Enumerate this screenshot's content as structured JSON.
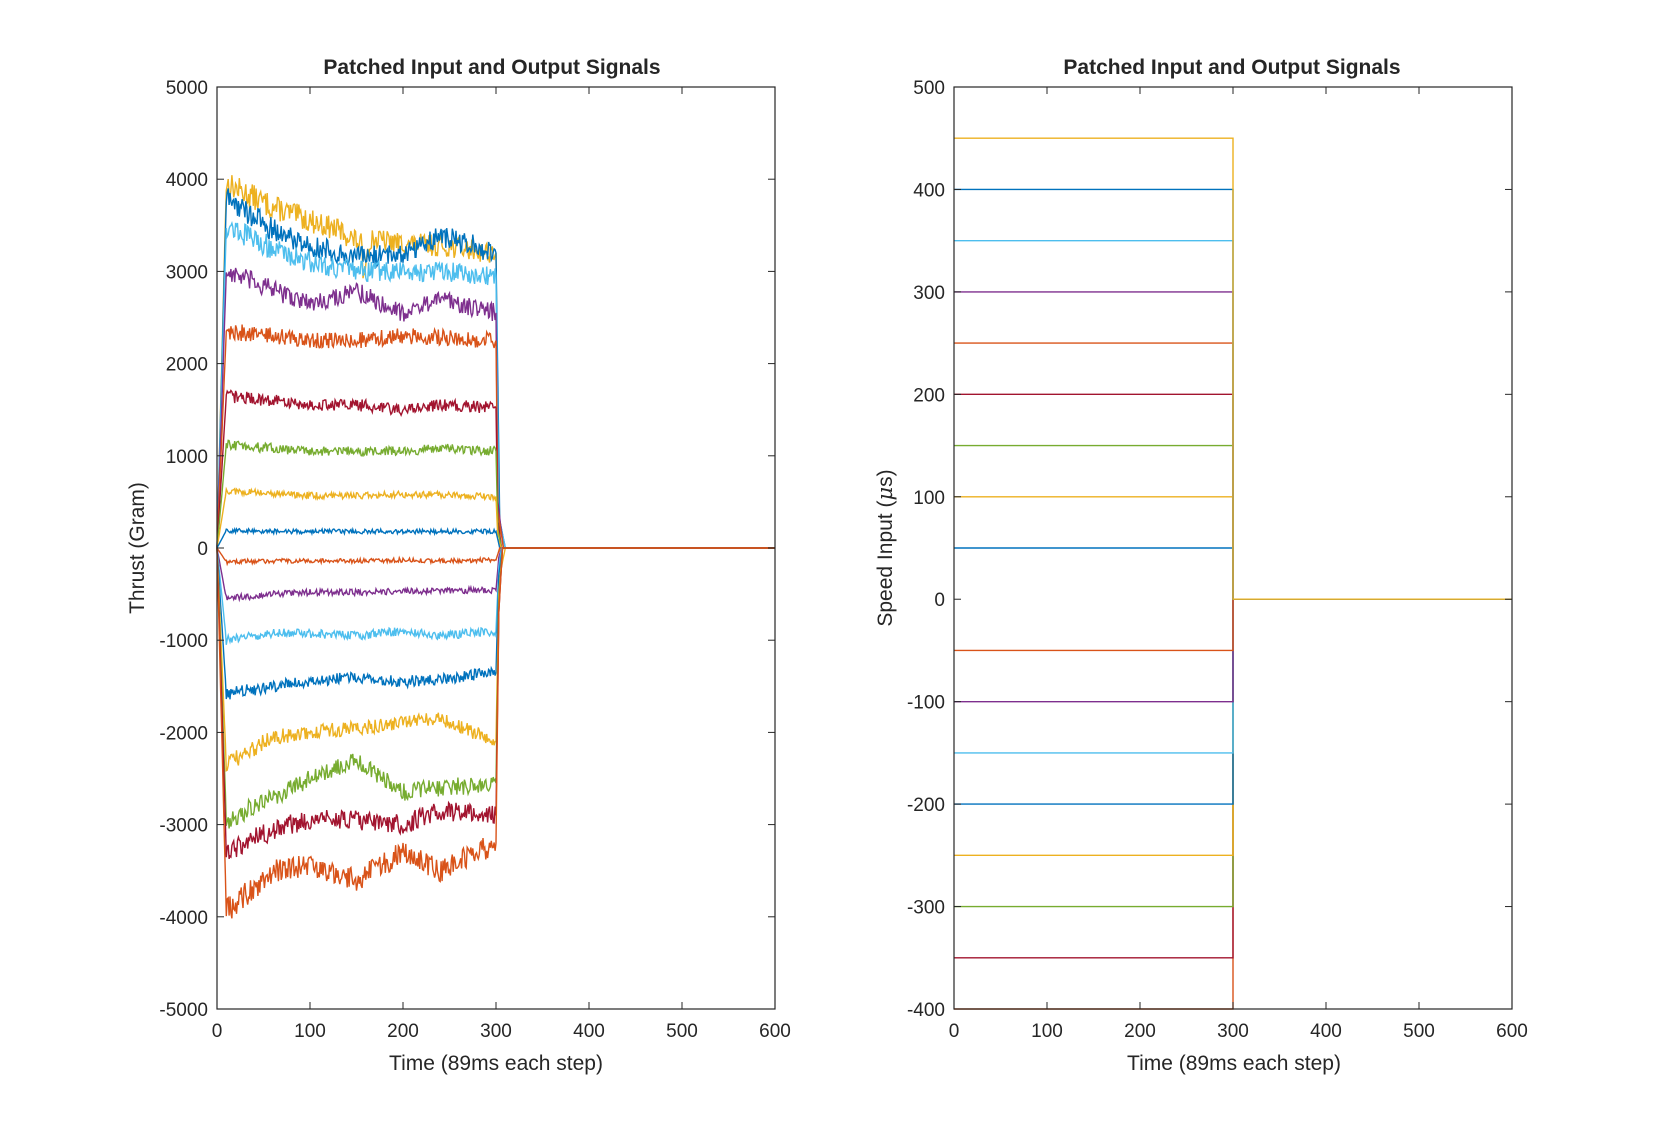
{
  "chart_data": [
    {
      "type": "line",
      "title": "Patched Input and Output Signals",
      "xlabel": "Time (89ms each step)",
      "ylabel": "Thrust (Gram)",
      "xlim": [
        0,
        600
      ],
      "ylim": [
        -5000,
        5000
      ],
      "xticks": [
        "0",
        "100",
        "200",
        "300",
        "400",
        "500",
        "600"
      ],
      "yticks": [
        "-5000",
        "-4000",
        "-3000",
        "-2000",
        "-1000",
        "0",
        "1000",
        "2000",
        "3000",
        "4000",
        "5000"
      ],
      "grid": false,
      "legend": "none",
      "series": [
        {
          "color": "#EDB120",
          "segments": [
            [
              0,
              0,
              -100
            ],
            [
              10,
              3950
            ],
            [
              60,
              3700
            ],
            [
              100,
              3550
            ],
            [
              130,
              3450
            ],
            [
              155,
              3300
            ],
            [
              157,
              2980
            ],
            [
              165,
              3350
            ],
            [
              200,
              3300
            ],
            [
              240,
              3280
            ],
            [
              300,
              3200
            ],
            [
              302,
              1200
            ],
            [
              305,
              -250
            ],
            [
              310,
              0
            ],
            [
              600,
              0
            ]
          ]
        },
        {
          "color": "#0072BD",
          "segments": [
            [
              0,
              0,
              -100
            ],
            [
              10,
              3800
            ],
            [
              60,
              3450
            ],
            [
              100,
              3280
            ],
            [
              150,
              3150
            ],
            [
              200,
              3200
            ],
            [
              240,
              3380
            ],
            [
              295,
              3220
            ],
            [
              300,
              3200
            ],
            [
              304,
              300
            ],
            [
              310,
              0
            ],
            [
              600,
              0
            ]
          ]
        },
        {
          "color": "#4DBEEE",
          "segments": [
            [
              0,
              0,
              -100
            ],
            [
              10,
              3500
            ],
            [
              60,
              3250
            ],
            [
              100,
              3100
            ],
            [
              150,
              3000
            ],
            [
              200,
              3000
            ],
            [
              240,
              3000
            ],
            [
              300,
              2950
            ],
            [
              303,
              350
            ],
            [
              310,
              0
            ],
            [
              600,
              0
            ]
          ]
        },
        {
          "color": "#7E2F8E",
          "segments": [
            [
              0,
              0,
              -100
            ],
            [
              10,
              3000
            ],
            [
              60,
              2800
            ],
            [
              100,
              2650
            ],
            [
              150,
              2780
            ],
            [
              200,
              2550
            ],
            [
              240,
              2700
            ],
            [
              300,
              2550
            ],
            [
              302,
              500
            ],
            [
              308,
              0
            ],
            [
              600,
              0
            ]
          ]
        },
        {
          "color": "#D95319",
          "segments": [
            [
              0,
              0,
              -100
            ],
            [
              10,
              2350
            ],
            [
              60,
              2300
            ],
            [
              100,
              2250
            ],
            [
              150,
              2250
            ],
            [
              200,
              2300
            ],
            [
              240,
              2280
            ],
            [
              300,
              2250
            ],
            [
              302,
              400
            ],
            [
              308,
              0
            ],
            [
              600,
              0
            ]
          ]
        },
        {
          "color": "#A2142F",
          "segments": [
            [
              0,
              0,
              -100
            ],
            [
              10,
              1650
            ],
            [
              60,
              1600
            ],
            [
              100,
              1550
            ],
            [
              150,
              1550
            ],
            [
              200,
              1500
            ],
            [
              240,
              1550
            ],
            [
              300,
              1520
            ],
            [
              302,
              300
            ],
            [
              306,
              0
            ],
            [
              600,
              0
            ]
          ]
        },
        {
          "color": "#77AC30",
          "segments": [
            [
              0,
              0,
              -100
            ],
            [
              10,
              1120
            ],
            [
              60,
              1080
            ],
            [
              100,
              1050
            ],
            [
              150,
              1050
            ],
            [
              200,
              1050
            ],
            [
              240,
              1080
            ],
            [
              300,
              1050
            ],
            [
              302,
              200
            ],
            [
              306,
              0
            ],
            [
              600,
              0
            ]
          ]
        },
        {
          "color": "#EDB120",
          "segments": [
            [
              0,
              0,
              -100
            ],
            [
              10,
              620
            ],
            [
              60,
              590
            ],
            [
              100,
              570
            ],
            [
              150,
              570
            ],
            [
              200,
              580
            ],
            [
              240,
              580
            ],
            [
              300,
              560
            ],
            [
              302,
              100
            ],
            [
              306,
              0
            ],
            [
              600,
              0
            ]
          ]
        },
        {
          "color": "#0072BD",
          "segments": [
            [
              0,
              0,
              -100
            ],
            [
              10,
              190
            ],
            [
              60,
              180
            ],
            [
              100,
              180
            ],
            [
              150,
              180
            ],
            [
              200,
              180
            ],
            [
              240,
              180
            ],
            [
              300,
              180
            ],
            [
              304,
              0
            ],
            [
              600,
              0
            ]
          ]
        },
        {
          "color": "#D95319",
          "segments": [
            [
              0,
              0,
              -100
            ],
            [
              10,
              -150
            ],
            [
              60,
              -140
            ],
            [
              100,
              -140
            ],
            [
              150,
              -140
            ],
            [
              200,
              -130
            ],
            [
              240,
              -140
            ],
            [
              300,
              -130
            ],
            [
              304,
              0
            ],
            [
              600,
              0
            ]
          ]
        },
        {
          "color": "#7E2F8E",
          "segments": [
            [
              0,
              0,
              -100
            ],
            [
              10,
              -550
            ],
            [
              60,
              -500
            ],
            [
              100,
              -480
            ],
            [
              150,
              -480
            ],
            [
              200,
              -470
            ],
            [
              240,
              -460
            ],
            [
              300,
              -460
            ],
            [
              303,
              -100
            ],
            [
              306,
              0
            ],
            [
              600,
              0
            ]
          ]
        },
        {
          "color": "#4DBEEE",
          "segments": [
            [
              0,
              0,
              -100
            ],
            [
              10,
              -1000
            ],
            [
              60,
              -920
            ],
            [
              100,
              -930
            ],
            [
              150,
              -950
            ],
            [
              200,
              -900
            ],
            [
              240,
              -950
            ],
            [
              300,
              -900
            ],
            [
              303,
              -200
            ],
            [
              306,
              0
            ],
            [
              600,
              0
            ]
          ]
        },
        {
          "color": "#0072BD",
          "segments": [
            [
              0,
              0,
              -100
            ],
            [
              10,
              -1580
            ],
            [
              60,
              -1500
            ],
            [
              100,
              -1450
            ],
            [
              150,
              -1400
            ],
            [
              200,
              -1450
            ],
            [
              240,
              -1420
            ],
            [
              300,
              -1350
            ],
            [
              303,
              -300
            ],
            [
              307,
              0
            ],
            [
              600,
              0
            ]
          ]
        },
        {
          "color": "#EDB120",
          "segments": [
            [
              0,
              0,
              -100
            ],
            [
              10,
              -2350
            ],
            [
              60,
              -2050
            ],
            [
              100,
              -2000
            ],
            [
              150,
              -1950
            ],
            [
              200,
              -1900
            ],
            [
              240,
              -1850
            ],
            [
              300,
              -2100
            ],
            [
              303,
              -500
            ],
            [
              307,
              0
            ],
            [
              600,
              0
            ]
          ]
        },
        {
          "color": "#77AC30",
          "segments": [
            [
              0,
              0,
              -100
            ],
            [
              10,
              -2950
            ],
            [
              60,
              -2700
            ],
            [
              100,
              -2500
            ],
            [
              150,
              -2300
            ],
            [
              200,
              -2650
            ],
            [
              240,
              -2600
            ],
            [
              300,
              -2550
            ],
            [
              303,
              -600
            ],
            [
              307,
              0
            ],
            [
              600,
              0
            ]
          ]
        },
        {
          "color": "#A2142F",
          "segments": [
            [
              0,
              0,
              -100
            ],
            [
              10,
              -3300
            ],
            [
              60,
              -3050
            ],
            [
              100,
              -2950
            ],
            [
              150,
              -2950
            ],
            [
              200,
              -3000
            ],
            [
              240,
              -2850
            ],
            [
              300,
              -2900
            ],
            [
              303,
              -700
            ],
            [
              307,
              0
            ],
            [
              600,
              0
            ]
          ]
        },
        {
          "color": "#D95319",
          "segments": [
            [
              0,
              0,
              -100
            ],
            [
              10,
              -3950
            ],
            [
              60,
              -3500
            ],
            [
              100,
              -3450
            ],
            [
              150,
              -3600
            ],
            [
              200,
              -3300
            ],
            [
              240,
              -3500
            ],
            [
              300,
              -3200
            ],
            [
              303,
              -700
            ],
            [
              307,
              0
            ],
            [
              600,
              0
            ]
          ]
        }
      ]
    },
    {
      "type": "line",
      "title": "Patched Input and Output Signals",
      "xlabel": "Time (89ms each step)",
      "ylabel_prefix": "Speed Input (",
      "ylabel_mu": "μ",
      "ylabel_suffix": "s)",
      "xlim": [
        0,
        600
      ],
      "ylim": [
        -400,
        500
      ],
      "xticks": [
        "0",
        "100",
        "200",
        "300",
        "400",
        "500",
        "600"
      ],
      "yticks": [
        "-400",
        "-300",
        "-200",
        "-100",
        "0",
        "100",
        "200",
        "300",
        "400",
        "500"
      ],
      "grid": false,
      "legend": "none",
      "step_end": 300,
      "series": [
        {
          "value": -400,
          "color": "#D95319"
        },
        {
          "value": -350,
          "color": "#A2142F"
        },
        {
          "value": -300,
          "color": "#77AC30"
        },
        {
          "value": -250,
          "color": "#EDB120"
        },
        {
          "value": -200,
          "color": "#0072BD"
        },
        {
          "value": -150,
          "color": "#4DBEEE"
        },
        {
          "value": -100,
          "color": "#7E2F8E"
        },
        {
          "value": -50,
          "color": "#D95319"
        },
        {
          "value": 50,
          "color": "#0072BD"
        },
        {
          "value": 100,
          "color": "#EDB120"
        },
        {
          "value": 150,
          "color": "#77AC30"
        },
        {
          "value": 200,
          "color": "#A2142F"
        },
        {
          "value": 250,
          "color": "#D95319"
        },
        {
          "value": 300,
          "color": "#7E2F8E"
        },
        {
          "value": 350,
          "color": "#4DBEEE"
        },
        {
          "value": 400,
          "color": "#0072BD"
        },
        {
          "value": 450,
          "color": "#EDB120"
        }
      ]
    }
  ]
}
